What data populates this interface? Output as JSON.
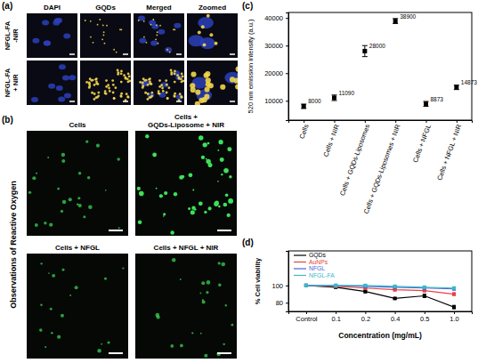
{
  "images": {
    "a": {
      "label": "(a)",
      "columns": [
        "DAPI",
        "GQDs",
        "Merged",
        "Zoomed"
      ],
      "rows": [
        "NFGL-FA -NIR",
        "NFGL-FA + NIR"
      ]
    },
    "b": {
      "label": "(b)",
      "title": "Observations of Reactive Oxygen",
      "captions": [
        "Cells",
        "Cells + GQDs-Liposome + NIR",
        "Cells + NFGL",
        "Cells + NFGL + NIR"
      ]
    }
  },
  "chart_data": [
    {
      "type": "scatter",
      "label": "(c)",
      "y_label": "520 nm emission intensity (a.u.)",
      "categories": [
        "Cells",
        "Cells + NIR",
        "Cells + GQDs-Liposomes",
        "Cells + GQDs-Liposomes + NIR",
        "Cells + NFGL",
        "Cells + NFGL + NIR"
      ],
      "values": [
        8000,
        11090,
        28000,
        38900,
        8873,
        14873
      ],
      "errors": [
        800,
        1000,
        2000,
        900,
        900,
        800
      ],
      "color": "#000000",
      "marker": "square",
      "data_labels": true,
      "ylim": [
        3000,
        42000
      ],
      "yticks": [
        10000,
        20000,
        30000,
        40000
      ],
      "grid": false
    },
    {
      "type": "line",
      "label": "(d)",
      "x_label": "Concentration (mg/mL)",
      "y_label": "% Cell viability",
      "categories": [
        "Control",
        "0.1",
        "0.2",
        "0.4",
        "0.5",
        "1.0"
      ],
      "series": [
        {
          "name": "GQDs",
          "color": "#000000",
          "values": [
            100,
            98,
            93,
            85,
            88,
            75
          ],
          "errors": [
            1,
            1,
            1.5,
            1,
            2,
            2
          ]
        },
        {
          "name": "AuNPs",
          "color": "#e8413d",
          "values": [
            100,
            99,
            97,
            95,
            94,
            90
          ],
          "errors": [
            1,
            1,
            1,
            1,
            1,
            1.5
          ]
        },
        {
          "name": "NFGL",
          "color": "#4a63d8",
          "values": [
            100,
            100,
            99,
            98,
            97,
            96
          ],
          "errors": [
            1,
            1,
            1,
            1,
            1,
            1
          ]
        },
        {
          "name": "NFGL-FA",
          "color": "#3ab8c8",
          "values": [
            100,
            100,
            100,
            99,
            98,
            97
          ],
          "errors": [
            1,
            1,
            1,
            1,
            1,
            1
          ]
        }
      ],
      "marker": "square",
      "legend": "upper left",
      "ylim": [
        70,
        140
      ],
      "yticks": [
        80,
        100
      ],
      "grid": false
    }
  ]
}
